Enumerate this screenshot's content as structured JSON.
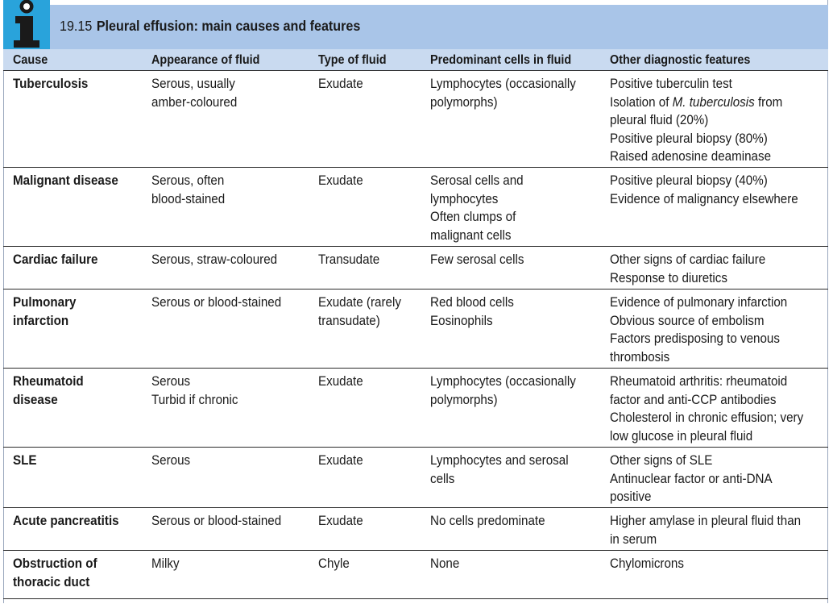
{
  "table": {
    "number": "19.15",
    "title": "Pleural effusion: main causes and features",
    "headers": [
      "Cause",
      "Appearance of fluid",
      "Type of fluid",
      "Predominant cells in fluid",
      "Other diagnostic features"
    ],
    "rows": [
      {
        "cause": [
          "Tuberculosis"
        ],
        "appearance": [
          "Serous, usually",
          "amber-coloured"
        ],
        "type": [
          "Exudate"
        ],
        "cells": [
          "Lymphocytes (occasionally",
          "polymorphs)"
        ],
        "other": [
          "Positive tuberculin test",
          "Isolation of M. tuberculosis from",
          "pleural fluid (20%)",
          "Positive pleural biopsy (80%)",
          "Raised adenosine deaminase"
        ]
      },
      {
        "cause": [
          "Malignant disease"
        ],
        "appearance": [
          "Serous, often",
          "blood-stained"
        ],
        "type": [
          "Exudate"
        ],
        "cells": [
          "Serosal cells and",
          "lymphocytes",
          "Often clumps of",
          "malignant cells"
        ],
        "other": [
          "Positive pleural biopsy (40%)",
          "Evidence of malignancy elsewhere"
        ]
      },
      {
        "cause": [
          "Cardiac failure"
        ],
        "appearance": [
          "Serous, straw-coloured"
        ],
        "type": [
          "Transudate"
        ],
        "cells": [
          "Few serosal cells"
        ],
        "other": [
          "Other signs of cardiac failure",
          "Response to diuretics"
        ]
      },
      {
        "cause": [
          "Pulmonary",
          "infarction"
        ],
        "appearance": [
          "Serous or blood-stained"
        ],
        "type": [
          "Exudate (rarely",
          "transudate)"
        ],
        "cells": [
          "Red blood cells",
          "Eosinophils"
        ],
        "other": [
          "Evidence of pulmonary infarction",
          "Obvious source of embolism",
          "Factors predisposing to venous",
          "thrombosis"
        ]
      },
      {
        "cause": [
          "Rheumatoid",
          "disease"
        ],
        "appearance": [
          "Serous",
          "Turbid if chronic"
        ],
        "type": [
          "Exudate"
        ],
        "cells": [
          "Lymphocytes (occasionally",
          "polymorphs)"
        ],
        "other": [
          "Rheumatoid arthritis: rheumatoid",
          "factor and anti-CCP antibodies",
          "Cholesterol in chronic effusion; very",
          "low glucose in pleural fluid"
        ]
      },
      {
        "cause": [
          "SLE"
        ],
        "appearance": [
          "Serous"
        ],
        "type": [
          "Exudate"
        ],
        "cells": [
          "Lymphocytes and serosal",
          "cells"
        ],
        "other": [
          "Other signs of SLE",
          "Antinuclear factor or anti-DNA",
          "positive"
        ]
      },
      {
        "cause": [
          "Acute pancreatitis"
        ],
        "appearance": [
          "Serous or blood-stained"
        ],
        "type": [
          "Exudate"
        ],
        "cells": [
          "No cells predominate"
        ],
        "other": [
          "Higher amylase in pleural fluid than",
          "in serum"
        ]
      },
      {
        "cause": [
          "Obstruction of",
          "thoracic duct"
        ],
        "appearance": [
          "Milky"
        ],
        "type": [
          "Chyle"
        ],
        "cells": [
          "None"
        ],
        "other": [
          "Chylomicrons"
        ]
      }
    ]
  },
  "icon": "info-icon"
}
